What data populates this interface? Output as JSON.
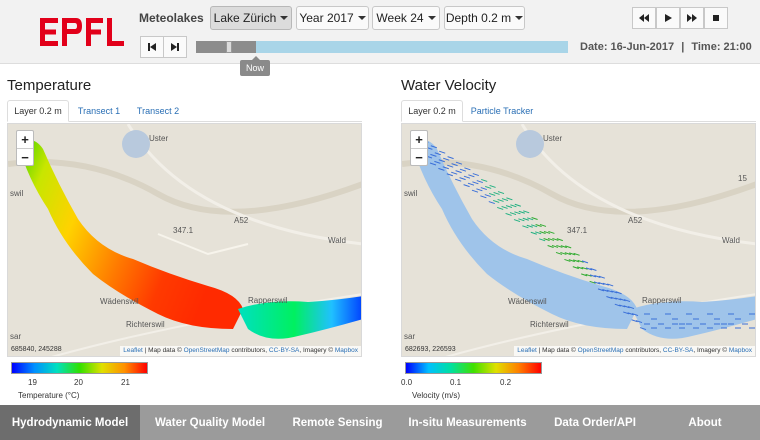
{
  "header": {
    "brand": "Meteolakes",
    "lake_button": "Lake Zürich",
    "year_button": "Year 2017",
    "week_button": "Week 24",
    "depth_button": "Depth 0.2 m",
    "now_label": "Now",
    "date_label": "Date: 16-Jun-2017",
    "time_label": "Time: 21:00",
    "timeline_progress": 0.16,
    "logo_text": "EPFL",
    "logo_color": "#e2001a"
  },
  "temperature": {
    "title": "Temperature",
    "tabs": [
      "Layer 0.2 m",
      "Transect 1",
      "Transect 2"
    ],
    "coords": "685840, 245288",
    "legend": {
      "ticks": [
        "19",
        "20",
        "21"
      ],
      "title": "Temperature (°C)"
    }
  },
  "velocity": {
    "title": "Water Velocity",
    "tabs": [
      "Layer 0.2 m",
      "Particle Tracker"
    ],
    "coords": "682693, 226593",
    "legend": {
      "ticks": [
        "0.0",
        "0.1",
        "0.2"
      ],
      "title": "Velocity (m/s)"
    }
  },
  "map": {
    "zoom_in": "+",
    "zoom_out": "−",
    "labels": {
      "uster": "Uster",
      "wadenswil": "Wädenswil",
      "richterswil": "Richterswil",
      "rapperswil": "Rapperswil",
      "wald": "Wald",
      "a52": "A52",
      "road_3471": "347.1",
      "route_15": "15",
      "wil": "swil",
      "sar": "sar"
    },
    "attribution": {
      "leaflet": "Leaflet",
      "sep1": " | Map data © ",
      "osm": "OpenStreetMap",
      "sep2": " contributors, ",
      "license": "CC-BY-SA",
      "sep3": ", Imagery © ",
      "mapbox": "Mapbox"
    }
  },
  "footer": {
    "items": [
      "Hydrodynamic Model",
      "Water Quality Model",
      "Remote Sensing",
      "In-situ Measurements",
      "Data Order/API",
      "About"
    ],
    "active_index": 0
  },
  "colors": {
    "accent_blue": "#2a6fb5",
    "timebar": "#a9d5e8",
    "footer_bg": "#9b9b9b",
    "footer_active": "#6d6d6d"
  }
}
